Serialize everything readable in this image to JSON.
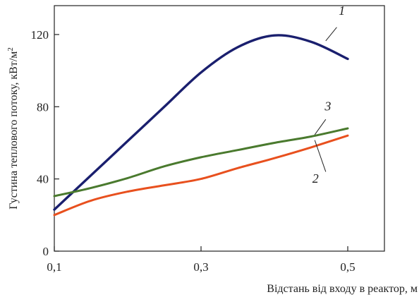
{
  "chart_data": {
    "type": "line",
    "xlabel": "Відстань від входу в реактор, м",
    "ylabel": "Густина теплового потоку, кВт/м",
    "ylabel_superscript": "2",
    "xlim": [
      0.1,
      0.55
    ],
    "ylim": [
      0,
      136
    ],
    "x_ticks": [
      0.1,
      0.3,
      0.5
    ],
    "x_tick_labels": [
      "0,1",
      "0,3",
      "0,5"
    ],
    "y_ticks": [
      0,
      40,
      80,
      120
    ],
    "y_tick_labels": [
      "0",
      "40",
      "80",
      "120"
    ],
    "grid": false,
    "legend": "none (curves labelled 1, 2, 3)",
    "series": [
      {
        "name": "1",
        "color": "#1a1f6e",
        "points": [
          [
            0.1,
            23
          ],
          [
            0.15,
            42
          ],
          [
            0.2,
            61
          ],
          [
            0.25,
            80
          ],
          [
            0.3,
            99
          ],
          [
            0.35,
            113
          ],
          [
            0.4,
            119.5
          ],
          [
            0.45,
            116
          ],
          [
            0.5,
            106.5
          ]
        ]
      },
      {
        "name": "2",
        "color": "#e8501e",
        "points": [
          [
            0.1,
            20
          ],
          [
            0.15,
            28
          ],
          [
            0.2,
            33
          ],
          [
            0.25,
            36.5
          ],
          [
            0.3,
            40
          ],
          [
            0.35,
            46
          ],
          [
            0.4,
            51.5
          ],
          [
            0.45,
            57.5
          ],
          [
            0.5,
            64
          ]
        ]
      },
      {
        "name": "3",
        "color": "#4a7a2e",
        "points": [
          [
            0.1,
            30.5
          ],
          [
            0.15,
            35
          ],
          [
            0.2,
            40.5
          ],
          [
            0.25,
            47
          ],
          [
            0.3,
            52
          ],
          [
            0.35,
            56
          ],
          [
            0.4,
            60
          ],
          [
            0.45,
            63.5
          ],
          [
            0.5,
            68
          ]
        ]
      }
    ]
  }
}
